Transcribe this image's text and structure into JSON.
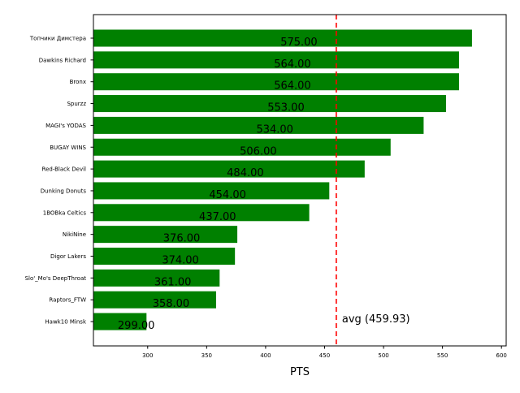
{
  "chart_data": {
    "type": "bar",
    "orientation": "horizontal",
    "categories": [
      "Топчики Димстера",
      "Dawkins Richard",
      "Bronx",
      "Spurzz",
      "MAGI's YODAS",
      "BUGAY WINS",
      "Red-Black Devil",
      "Dunking Donuts",
      "1BOBka Celtics",
      "NikiNine",
      "Digor Lakers",
      "Slo'_Mo's DeepThroat",
      "Raptors_FTW",
      "Hawk10 Minsk"
    ],
    "values": [
      575,
      564,
      564,
      553,
      534,
      506,
      484,
      454,
      437,
      376,
      374,
      361,
      358,
      299
    ],
    "value_labels": [
      "575.00",
      "564.00",
      "564.00",
      "553.00",
      "534.00",
      "506.00",
      "484.00",
      "454.00",
      "437.00",
      "376.00",
      "374.00",
      "361.00",
      "358.00",
      "299.00"
    ],
    "xlabel": "PTS",
    "ylabel": "",
    "xlim": [
      254,
      604
    ],
    "xticks": [
      300,
      350,
      400,
      450,
      500,
      550,
      600
    ],
    "bar_color": "#008000",
    "reference_line": {
      "value": 459.93,
      "label": "avg (459.93)",
      "color": "#ff0000",
      "style": "dashed"
    },
    "grid": false,
    "legend": "none"
  }
}
